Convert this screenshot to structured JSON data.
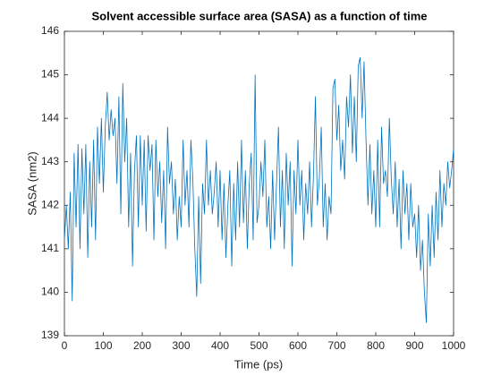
{
  "chart_data": {
    "type": "line",
    "title": "Solvent accessible surface area (SASA) as a function of time",
    "xlabel": "Time (ps)",
    "ylabel": "SASA (nm2)",
    "xlim": [
      0,
      1000
    ],
    "xticks": [
      0,
      100,
      200,
      300,
      400,
      500,
      600,
      700,
      800,
      900,
      1000
    ],
    "ylim": [
      139,
      146
    ],
    "yticks": [
      139,
      140,
      141,
      142,
      143,
      144,
      145,
      146
    ],
    "series": [
      {
        "color": "#0072bd",
        "x": [
          0,
          5,
          10,
          15,
          20,
          25,
          30,
          35,
          40,
          45,
          50,
          55,
          60,
          65,
          70,
          75,
          80,
          85,
          90,
          95,
          100,
          105,
          110,
          115,
          120,
          125,
          130,
          135,
          140,
          145,
          150,
          155,
          160,
          165,
          170,
          175,
          180,
          185,
          190,
          195,
          200,
          205,
          210,
          215,
          220,
          225,
          230,
          235,
          240,
          245,
          250,
          255,
          260,
          265,
          270,
          275,
          280,
          285,
          290,
          295,
          300,
          305,
          310,
          315,
          320,
          325,
          330,
          335,
          340,
          345,
          350,
          355,
          360,
          365,
          370,
          375,
          380,
          385,
          390,
          395,
          400,
          405,
          410,
          415,
          420,
          425,
          430,
          435,
          440,
          445,
          450,
          455,
          460,
          465,
          470,
          475,
          480,
          485,
          490,
          495,
          500,
          505,
          510,
          515,
          520,
          525,
          530,
          535,
          540,
          545,
          550,
          555,
          560,
          565,
          570,
          575,
          580,
          585,
          590,
          595,
          600,
          605,
          610,
          615,
          620,
          625,
          630,
          635,
          640,
          645,
          650,
          655,
          660,
          665,
          670,
          675,
          680,
          685,
          690,
          695,
          700,
          705,
          710,
          715,
          720,
          725,
          730,
          735,
          740,
          745,
          750,
          755,
          760,
          765,
          770,
          775,
          780,
          785,
          790,
          795,
          800,
          805,
          810,
          815,
          820,
          825,
          830,
          835,
          840,
          845,
          850,
          855,
          860,
          865,
          870,
          875,
          880,
          885,
          890,
          895,
          900,
          905,
          910,
          915,
          920,
          925,
          930,
          935,
          940,
          945,
          950,
          955,
          960,
          965,
          970,
          975,
          980,
          985,
          990,
          995,
          1000
        ],
        "values": [
          141.2,
          142.0,
          141.0,
          142.3,
          139.8,
          143.2,
          141.5,
          143.4,
          141.0,
          143.3,
          141.8,
          143.4,
          140.8,
          143.0,
          141.5,
          143.5,
          141.2,
          143.8,
          142.5,
          144.0,
          142.3,
          143.8,
          144.6,
          143.5,
          144.2,
          143.6,
          144.0,
          142.5,
          144.5,
          141.8,
          144.8,
          143.0,
          144.0,
          141.5,
          143.2,
          140.6,
          142.8,
          143.6,
          141.5,
          143.6,
          142.0,
          143.5,
          141.4,
          143.6,
          142.8,
          143.4,
          141.2,
          143.5,
          142.2,
          143.0,
          141.6,
          142.8,
          141.0,
          143.8,
          142.5,
          143.0,
          141.8,
          142.6,
          141.2,
          142.2,
          141.5,
          143.5,
          142.0,
          142.8,
          141.5,
          143.5,
          142.6,
          141.0,
          139.9,
          142.2,
          140.2,
          142.5,
          141.8,
          143.5,
          142.0,
          142.8,
          141.8,
          142.3,
          143.0,
          141.5,
          142.8,
          141.2,
          142.5,
          140.8,
          142.0,
          142.8,
          140.6,
          142.5,
          141.2,
          143.0,
          141.5,
          143.5,
          141.6,
          142.8,
          141.0,
          142.5,
          143.2,
          141.2,
          145.0,
          141.6,
          142.0,
          143.0,
          142.2,
          143.5,
          141.5,
          142.2,
          141.0,
          142.8,
          141.2,
          142.5,
          143.8,
          141.5,
          142.8,
          141.0,
          143.2,
          142.0,
          143.0,
          140.6,
          142.8,
          141.8,
          143.5,
          142.0,
          142.8,
          141.2,
          142.5,
          141.8,
          143.0,
          141.5,
          142.7,
          144.5,
          142.0,
          142.6,
          143.8,
          141.5,
          142.5,
          141.2,
          142.2,
          141.8,
          144.7,
          144.9,
          143.5,
          144.3,
          142.8,
          143.5,
          142.6,
          144.5,
          143.8,
          145.0,
          143.2,
          144.5,
          143.0,
          145.2,
          145.4,
          144.0,
          145.3,
          143.5,
          142.0,
          143.4,
          141.8,
          142.8,
          141.5,
          143.5,
          141.5,
          143.8,
          142.5,
          142.8,
          142.2,
          144.0,
          142.6,
          141.8,
          143.0,
          141.5,
          142.6,
          141.0,
          142.8,
          141.8,
          142.5,
          141.2,
          142.5,
          141.5,
          141.8,
          140.8,
          142.0,
          140.5,
          141.2,
          140.0,
          139.3,
          141.8,
          140.6,
          142.0,
          140.8,
          142.3,
          141.2,
          142.8,
          141.5,
          142.5,
          142.0,
          143.0,
          142.4,
          142.8,
          143.3
        ]
      }
    ]
  }
}
